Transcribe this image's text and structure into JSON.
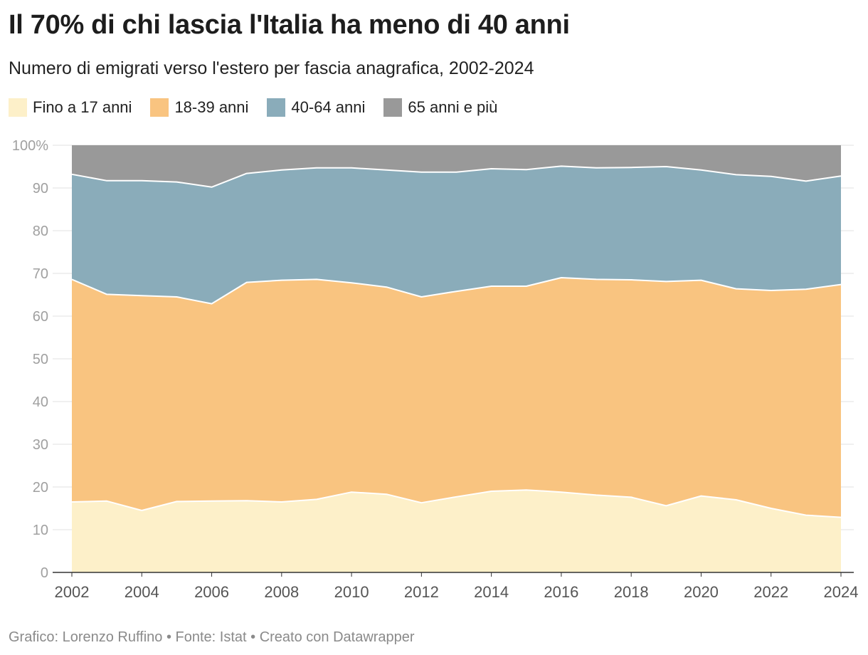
{
  "title": "Il 70% di chi lascia l'Italia ha meno di 40 anni",
  "subtitle": "Numero di emigrati verso l'estero per fascia anagrafica, 2002-2024",
  "footer": "Grafico: Lorenzo Ruffino • Fonte: Istat • Creato con Datawrapper",
  "legend": [
    {
      "label": "Fino a 17 anni",
      "color": "#fdf0c9"
    },
    {
      "label": "18-39 anni",
      "color": "#f9c480"
    },
    {
      "label": "40-64 anni",
      "color": "#8aacba"
    },
    {
      "label": "65 anni e più",
      "color": "#999999"
    }
  ],
  "chart_data": {
    "type": "area",
    "stacked": true,
    "x": [
      2002,
      2003,
      2004,
      2005,
      2006,
      2007,
      2008,
      2009,
      2010,
      2011,
      2012,
      2013,
      2014,
      2015,
      2016,
      2017,
      2018,
      2019,
      2020,
      2021,
      2022,
      2023,
      2024
    ],
    "series": [
      {
        "name": "Fino a 17 anni",
        "color": "#fdf0c9",
        "values": [
          16.5,
          16.7,
          14.5,
          16.6,
          16.7,
          16.8,
          16.5,
          17.1,
          18.8,
          18.3,
          16.3,
          17.7,
          19.0,
          19.3,
          18.8,
          18.1,
          17.6,
          15.6,
          17.9,
          17.0,
          15.0,
          13.4,
          12.9
        ]
      },
      {
        "name": "18-39 anni",
        "color": "#f9c480",
        "values": [
          52.1,
          48.4,
          50.3,
          47.9,
          46.2,
          51.1,
          51.9,
          51.5,
          49.0,
          48.5,
          48.2,
          48.1,
          48.0,
          47.7,
          50.2,
          50.5,
          50.9,
          52.5,
          50.5,
          49.4,
          51.0,
          52.9,
          54.5
        ]
      },
      {
        "name": "40-64 anni",
        "color": "#8aacba",
        "values": [
          24.6,
          26.6,
          26.9,
          26.9,
          27.3,
          25.5,
          25.8,
          26.1,
          26.9,
          27.4,
          29.2,
          27.9,
          27.5,
          27.3,
          26.1,
          26.1,
          26.3,
          26.9,
          25.8,
          26.7,
          26.7,
          25.3,
          25.4
        ]
      },
      {
        "name": "65 anni e più",
        "color": "#999999",
        "values": [
          6.8,
          8.3,
          8.3,
          8.6,
          9.8,
          6.6,
          5.8,
          5.3,
          5.3,
          5.8,
          6.3,
          6.3,
          5.5,
          5.7,
          4.9,
          5.3,
          5.2,
          5.0,
          5.8,
          6.9,
          7.3,
          8.4,
          7.2
        ]
      }
    ],
    "xticks": [
      "2002",
      "2004",
      "2006",
      "2008",
      "2010",
      "2012",
      "2014",
      "2016",
      "2018",
      "2020",
      "2022",
      "2024"
    ],
    "yticks": [
      "0",
      "10",
      "20",
      "30",
      "40",
      "50",
      "60",
      "70",
      "80",
      "90",
      "100%"
    ],
    "xlim": [
      2002,
      2024
    ],
    "ylim": [
      0,
      100
    ],
    "grid": true,
    "legend_position": "top-left"
  }
}
